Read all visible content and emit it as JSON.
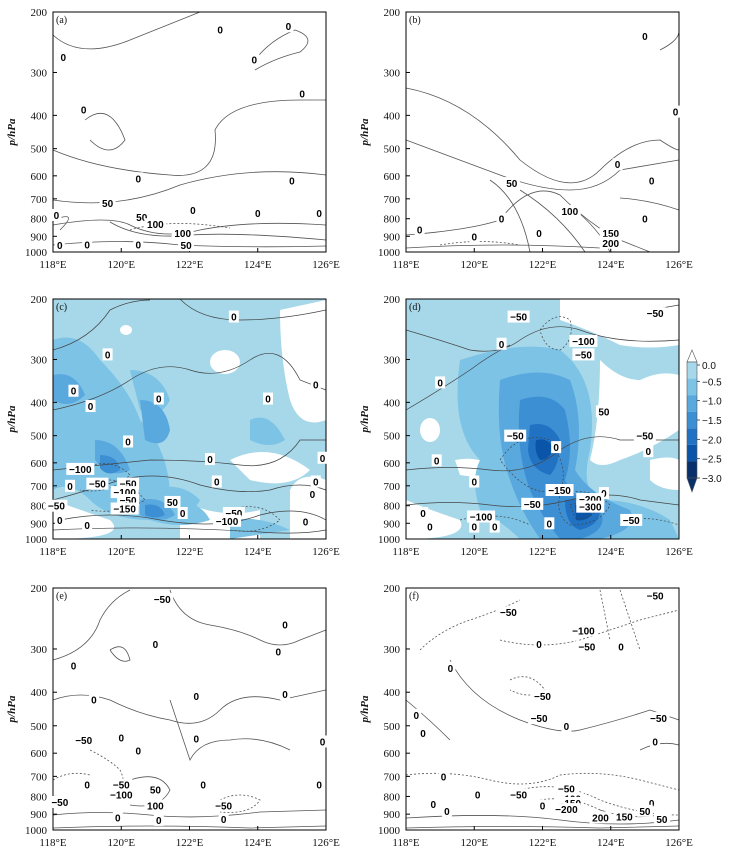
{
  "figure": {
    "y_axis_label": "p/hPa",
    "x_ticks": [
      "118°E",
      "120°E",
      "122°E",
      "124°E",
      "126°E"
    ],
    "y_ticks": [
      "200",
      "300",
      "400",
      "500",
      "600",
      "700",
      "800",
      "900",
      "1000"
    ]
  },
  "colorbar": {
    "ticks": [
      "0.0",
      "−0.5",
      "−1.0",
      "−1.5",
      "−2.0",
      "−2.5",
      "−3.0"
    ],
    "colors": [
      "#ffffff",
      "#a6d8ea",
      "#7dc3e6",
      "#5aa9de",
      "#3d8fd4",
      "#2272c3",
      "#0b55a8",
      "#08306b"
    ]
  },
  "chart_data": [
    {
      "type": "contour",
      "panel": "(a)",
      "shaded": false,
      "xlim": [
        118,
        126
      ],
      "ylim": [
        1000,
        200
      ],
      "y_scale": "log-pressure",
      "contour_labels": [
        {
          "lon": 118.3,
          "p": 270,
          "text": "0"
        },
        {
          "lon": 118.1,
          "p": 780,
          "text": "0"
        },
        {
          "lon": 118.2,
          "p": 955,
          "text": "0"
        },
        {
          "lon": 118.9,
          "p": 385,
          "text": "0"
        },
        {
          "lon": 119.0,
          "p": 950,
          "text": "0"
        },
        {
          "lon": 119.6,
          "p": 720,
          "text": "50"
        },
        {
          "lon": 120.5,
          "p": 610,
          "text": "0"
        },
        {
          "lon": 120.6,
          "p": 790,
          "text": "50"
        },
        {
          "lon": 120.5,
          "p": 950,
          "text": "0"
        },
        {
          "lon": 121.0,
          "p": 830,
          "text": "100"
        },
        {
          "lon": 121.8,
          "p": 880,
          "text": "100"
        },
        {
          "lon": 121.9,
          "p": 955,
          "text": "50"
        },
        {
          "lon": 122.1,
          "p": 755,
          "text": "0"
        },
        {
          "lon": 122.9,
          "p": 225,
          "text": "0"
        },
        {
          "lon": 123.9,
          "p": 275,
          "text": "0"
        },
        {
          "lon": 124.0,
          "p": 770,
          "text": "0"
        },
        {
          "lon": 124.9,
          "p": 220,
          "text": "0"
        },
        {
          "lon": 125.3,
          "p": 345,
          "text": "0"
        },
        {
          "lon": 125.0,
          "p": 620,
          "text": "0"
        },
        {
          "lon": 125.8,
          "p": 770,
          "text": "0"
        }
      ]
    },
    {
      "type": "contour",
      "panel": "(b)",
      "shaded": false,
      "xlim": [
        118,
        126
      ],
      "ylim": [
        1000,
        200
      ],
      "y_scale": "log-pressure",
      "contour_labels": [
        {
          "lon": 125.0,
          "p": 235,
          "text": "0"
        },
        {
          "lon": 125.9,
          "p": 390,
          "text": "0"
        },
        {
          "lon": 124.2,
          "p": 555,
          "text": "0"
        },
        {
          "lon": 121.1,
          "p": 630,
          "text": "50"
        },
        {
          "lon": 125.2,
          "p": 620,
          "text": "0"
        },
        {
          "lon": 122.8,
          "p": 760,
          "text": "100"
        },
        {
          "lon": 120.8,
          "p": 800,
          "text": "0"
        },
        {
          "lon": 125.0,
          "p": 800,
          "text": "0"
        },
        {
          "lon": 118.4,
          "p": 860,
          "text": "0"
        },
        {
          "lon": 120.0,
          "p": 900,
          "text": "0"
        },
        {
          "lon": 121.9,
          "p": 880,
          "text": "0"
        },
        {
          "lon": 124.0,
          "p": 880,
          "text": "150"
        },
        {
          "lon": 124.0,
          "p": 940,
          "text": "200"
        }
      ]
    },
    {
      "type": "contour",
      "panel": "(c)",
      "shaded": true,
      "xlim": [
        118,
        126
      ],
      "ylim": [
        1000,
        200
      ],
      "y_scale": "log-pressure",
      "contour_labels": [
        {
          "lon": 123.3,
          "p": 225,
          "text": "0"
        },
        {
          "lon": 119.6,
          "p": 290,
          "text": "0"
        },
        {
          "lon": 118.6,
          "p": 370,
          "text": "0"
        },
        {
          "lon": 125.7,
          "p": 355,
          "text": "0"
        },
        {
          "lon": 121.1,
          "p": 390,
          "text": "0"
        },
        {
          "lon": 119.1,
          "p": 410,
          "text": "0"
        },
        {
          "lon": 124.3,
          "p": 390,
          "text": "0"
        },
        {
          "lon": 120.2,
          "p": 520,
          "text": "0"
        },
        {
          "lon": 122.6,
          "p": 585,
          "text": "0"
        },
        {
          "lon": 125.9,
          "p": 580,
          "text": "0"
        },
        {
          "lon": 118.8,
          "p": 625,
          "text": "−100"
        },
        {
          "lon": 120.2,
          "p": 690,
          "text": "−50"
        },
        {
          "lon": 119.3,
          "p": 690,
          "text": "−50"
        },
        {
          "lon": 122.8,
          "p": 680,
          "text": "0"
        },
        {
          "lon": 125.7,
          "p": 680,
          "text": "0"
        },
        {
          "lon": 118.5,
          "p": 700,
          "text": "0"
        },
        {
          "lon": 120.1,
          "p": 730,
          "text": "−100"
        },
        {
          "lon": 125.6,
          "p": 740,
          "text": "0"
        },
        {
          "lon": 118.1,
          "p": 800,
          "text": "−50"
        },
        {
          "lon": 120.2,
          "p": 770,
          "text": "−50"
        },
        {
          "lon": 121.5,
          "p": 780,
          "text": "50"
        },
        {
          "lon": 120.1,
          "p": 815,
          "text": "−150"
        },
        {
          "lon": 121.8,
          "p": 840,
          "text": "0"
        },
        {
          "lon": 123.3,
          "p": 840,
          "text": "−50"
        },
        {
          "lon": 118.2,
          "p": 880,
          "text": "0"
        },
        {
          "lon": 123.1,
          "p": 885,
          "text": "−100"
        },
        {
          "lon": 125.4,
          "p": 890,
          "text": "0"
        },
        {
          "lon": 119.0,
          "p": 910,
          "text": "0"
        }
      ]
    },
    {
      "type": "contour",
      "panel": "(d)",
      "shaded": true,
      "xlim": [
        118,
        126
      ],
      "ylim": [
        1000,
        200
      ],
      "y_scale": "log-pressure",
      "contour_labels": [
        {
          "lon": 121.3,
          "p": 225,
          "text": "−50"
        },
        {
          "lon": 125.3,
          "p": 220,
          "text": "−50"
        },
        {
          "lon": 123.2,
          "p": 265,
          "text": "−100"
        },
        {
          "lon": 120.8,
          "p": 270,
          "text": "0"
        },
        {
          "lon": 123.2,
          "p": 290,
          "text": "−50"
        },
        {
          "lon": 119.0,
          "p": 350,
          "text": "0"
        },
        {
          "lon": 123.8,
          "p": 425,
          "text": "50"
        },
        {
          "lon": 121.2,
          "p": 500,
          "text": "−50"
        },
        {
          "lon": 125.0,
          "p": 500,
          "text": "−50"
        },
        {
          "lon": 122.4,
          "p": 540,
          "text": "0"
        },
        {
          "lon": 125.1,
          "p": 555,
          "text": "0"
        },
        {
          "lon": 118.9,
          "p": 590,
          "text": "0"
        },
        {
          "lon": 120.0,
          "p": 680,
          "text": "0"
        },
        {
          "lon": 122.5,
          "p": 720,
          "text": "−150"
        },
        {
          "lon": 123.8,
          "p": 735,
          "text": "0"
        },
        {
          "lon": 123.4,
          "p": 765,
          "text": "−200"
        },
        {
          "lon": 123.4,
          "p": 805,
          "text": "−300"
        },
        {
          "lon": 121.7,
          "p": 790,
          "text": "−50"
        },
        {
          "lon": 118.5,
          "p": 840,
          "text": "0"
        },
        {
          "lon": 120.2,
          "p": 860,
          "text": "−100"
        },
        {
          "lon": 124.6,
          "p": 880,
          "text": "−50"
        },
        {
          "lon": 118.7,
          "p": 920,
          "text": "0"
        },
        {
          "lon": 120.0,
          "p": 920,
          "text": "0"
        },
        {
          "lon": 120.6,
          "p": 920,
          "text": "0"
        },
        {
          "lon": 122.2,
          "p": 900,
          "text": "0"
        }
      ]
    },
    {
      "type": "contour",
      "panel": "(e)",
      "shaded": false,
      "xlim": [
        118,
        126
      ],
      "ylim": [
        1000,
        200
      ],
      "y_scale": "log-pressure",
      "contour_labels": [
        {
          "lon": 121.2,
          "p": 215,
          "text": "−50"
        },
        {
          "lon": 124.8,
          "p": 255,
          "text": "0"
        },
        {
          "lon": 121.0,
          "p": 290,
          "text": "0"
        },
        {
          "lon": 124.6,
          "p": 305,
          "text": "0"
        },
        {
          "lon": 118.6,
          "p": 335,
          "text": "0"
        },
        {
          "lon": 119.2,
          "p": 420,
          "text": "0"
        },
        {
          "lon": 122.2,
          "p": 410,
          "text": "0"
        },
        {
          "lon": 124.8,
          "p": 405,
          "text": "0"
        },
        {
          "lon": 118.9,
          "p": 550,
          "text": "−50"
        },
        {
          "lon": 120.0,
          "p": 540,
          "text": "0"
        },
        {
          "lon": 122.2,
          "p": 545,
          "text": "0"
        },
        {
          "lon": 120.5,
          "p": 590,
          "text": "0"
        },
        {
          "lon": 125.9,
          "p": 555,
          "text": "0"
        },
        {
          "lon": 119.0,
          "p": 740,
          "text": "0"
        },
        {
          "lon": 120.0,
          "p": 740,
          "text": "−50"
        },
        {
          "lon": 121.0,
          "p": 765,
          "text": "50"
        },
        {
          "lon": 122.4,
          "p": 740,
          "text": "0"
        },
        {
          "lon": 125.8,
          "p": 740,
          "text": "0"
        },
        {
          "lon": 120.0,
          "p": 790,
          "text": "−100"
        },
        {
          "lon": 118.2,
          "p": 830,
          "text": "−50"
        },
        {
          "lon": 121.0,
          "p": 850,
          "text": "100"
        },
        {
          "lon": 123.0,
          "p": 850,
          "text": "−50"
        },
        {
          "lon": 119.9,
          "p": 920,
          "text": "0"
        },
        {
          "lon": 121.1,
          "p": 935,
          "text": "0"
        },
        {
          "lon": 123.0,
          "p": 930,
          "text": "0"
        }
      ]
    },
    {
      "type": "contour",
      "panel": "(f)",
      "shaded": false,
      "xlim": [
        118,
        126
      ],
      "ylim": [
        1000,
        200
      ],
      "y_scale": "log-pressure",
      "contour_labels": [
        {
          "lon": 125.3,
          "p": 210,
          "text": "−50"
        },
        {
          "lon": 121.0,
          "p": 235,
          "text": "−50"
        },
        {
          "lon": 123.2,
          "p": 265,
          "text": "−100"
        },
        {
          "lon": 121.9,
          "p": 290,
          "text": "0"
        },
        {
          "lon": 123.3,
          "p": 295,
          "text": "−50"
        },
        {
          "lon": 124.3,
          "p": 295,
          "text": "0"
        },
        {
          "lon": 119.3,
          "p": 340,
          "text": "0"
        },
        {
          "lon": 122.0,
          "p": 410,
          "text": "−50"
        },
        {
          "lon": 118.3,
          "p": 465,
          "text": "0"
        },
        {
          "lon": 121.9,
          "p": 475,
          "text": "−50"
        },
        {
          "lon": 125.4,
          "p": 475,
          "text": "−50"
        },
        {
          "lon": 122.7,
          "p": 500,
          "text": "0"
        },
        {
          "lon": 118.5,
          "p": 525,
          "text": "0"
        },
        {
          "lon": 125.3,
          "p": 555,
          "text": "0"
        },
        {
          "lon": 119.1,
          "p": 700,
          "text": "0"
        },
        {
          "lon": 122.7,
          "p": 760,
          "text": "−50"
        },
        {
          "lon": 120.1,
          "p": 790,
          "text": "0"
        },
        {
          "lon": 121.3,
          "p": 790,
          "text": "−50"
        },
        {
          "lon": 122.8,
          "p": 810,
          "text": "−100"
        },
        {
          "lon": 122.8,
          "p": 835,
          "text": "−150"
        },
        {
          "lon": 125.2,
          "p": 835,
          "text": "0"
        },
        {
          "lon": 122.7,
          "p": 870,
          "text": "−200"
        },
        {
          "lon": 118.8,
          "p": 840,
          "text": "0"
        },
        {
          "lon": 119.2,
          "p": 880,
          "text": "0"
        },
        {
          "lon": 125.0,
          "p": 880,
          "text": "50"
        },
        {
          "lon": 123.7,
          "p": 920,
          "text": "200"
        },
        {
          "lon": 124.4,
          "p": 915,
          "text": "150"
        },
        {
          "lon": 125.5,
          "p": 930,
          "text": "50"
        },
        {
          "lon": 122.0,
          "p": 850,
          "text": "0"
        }
      ]
    }
  ]
}
